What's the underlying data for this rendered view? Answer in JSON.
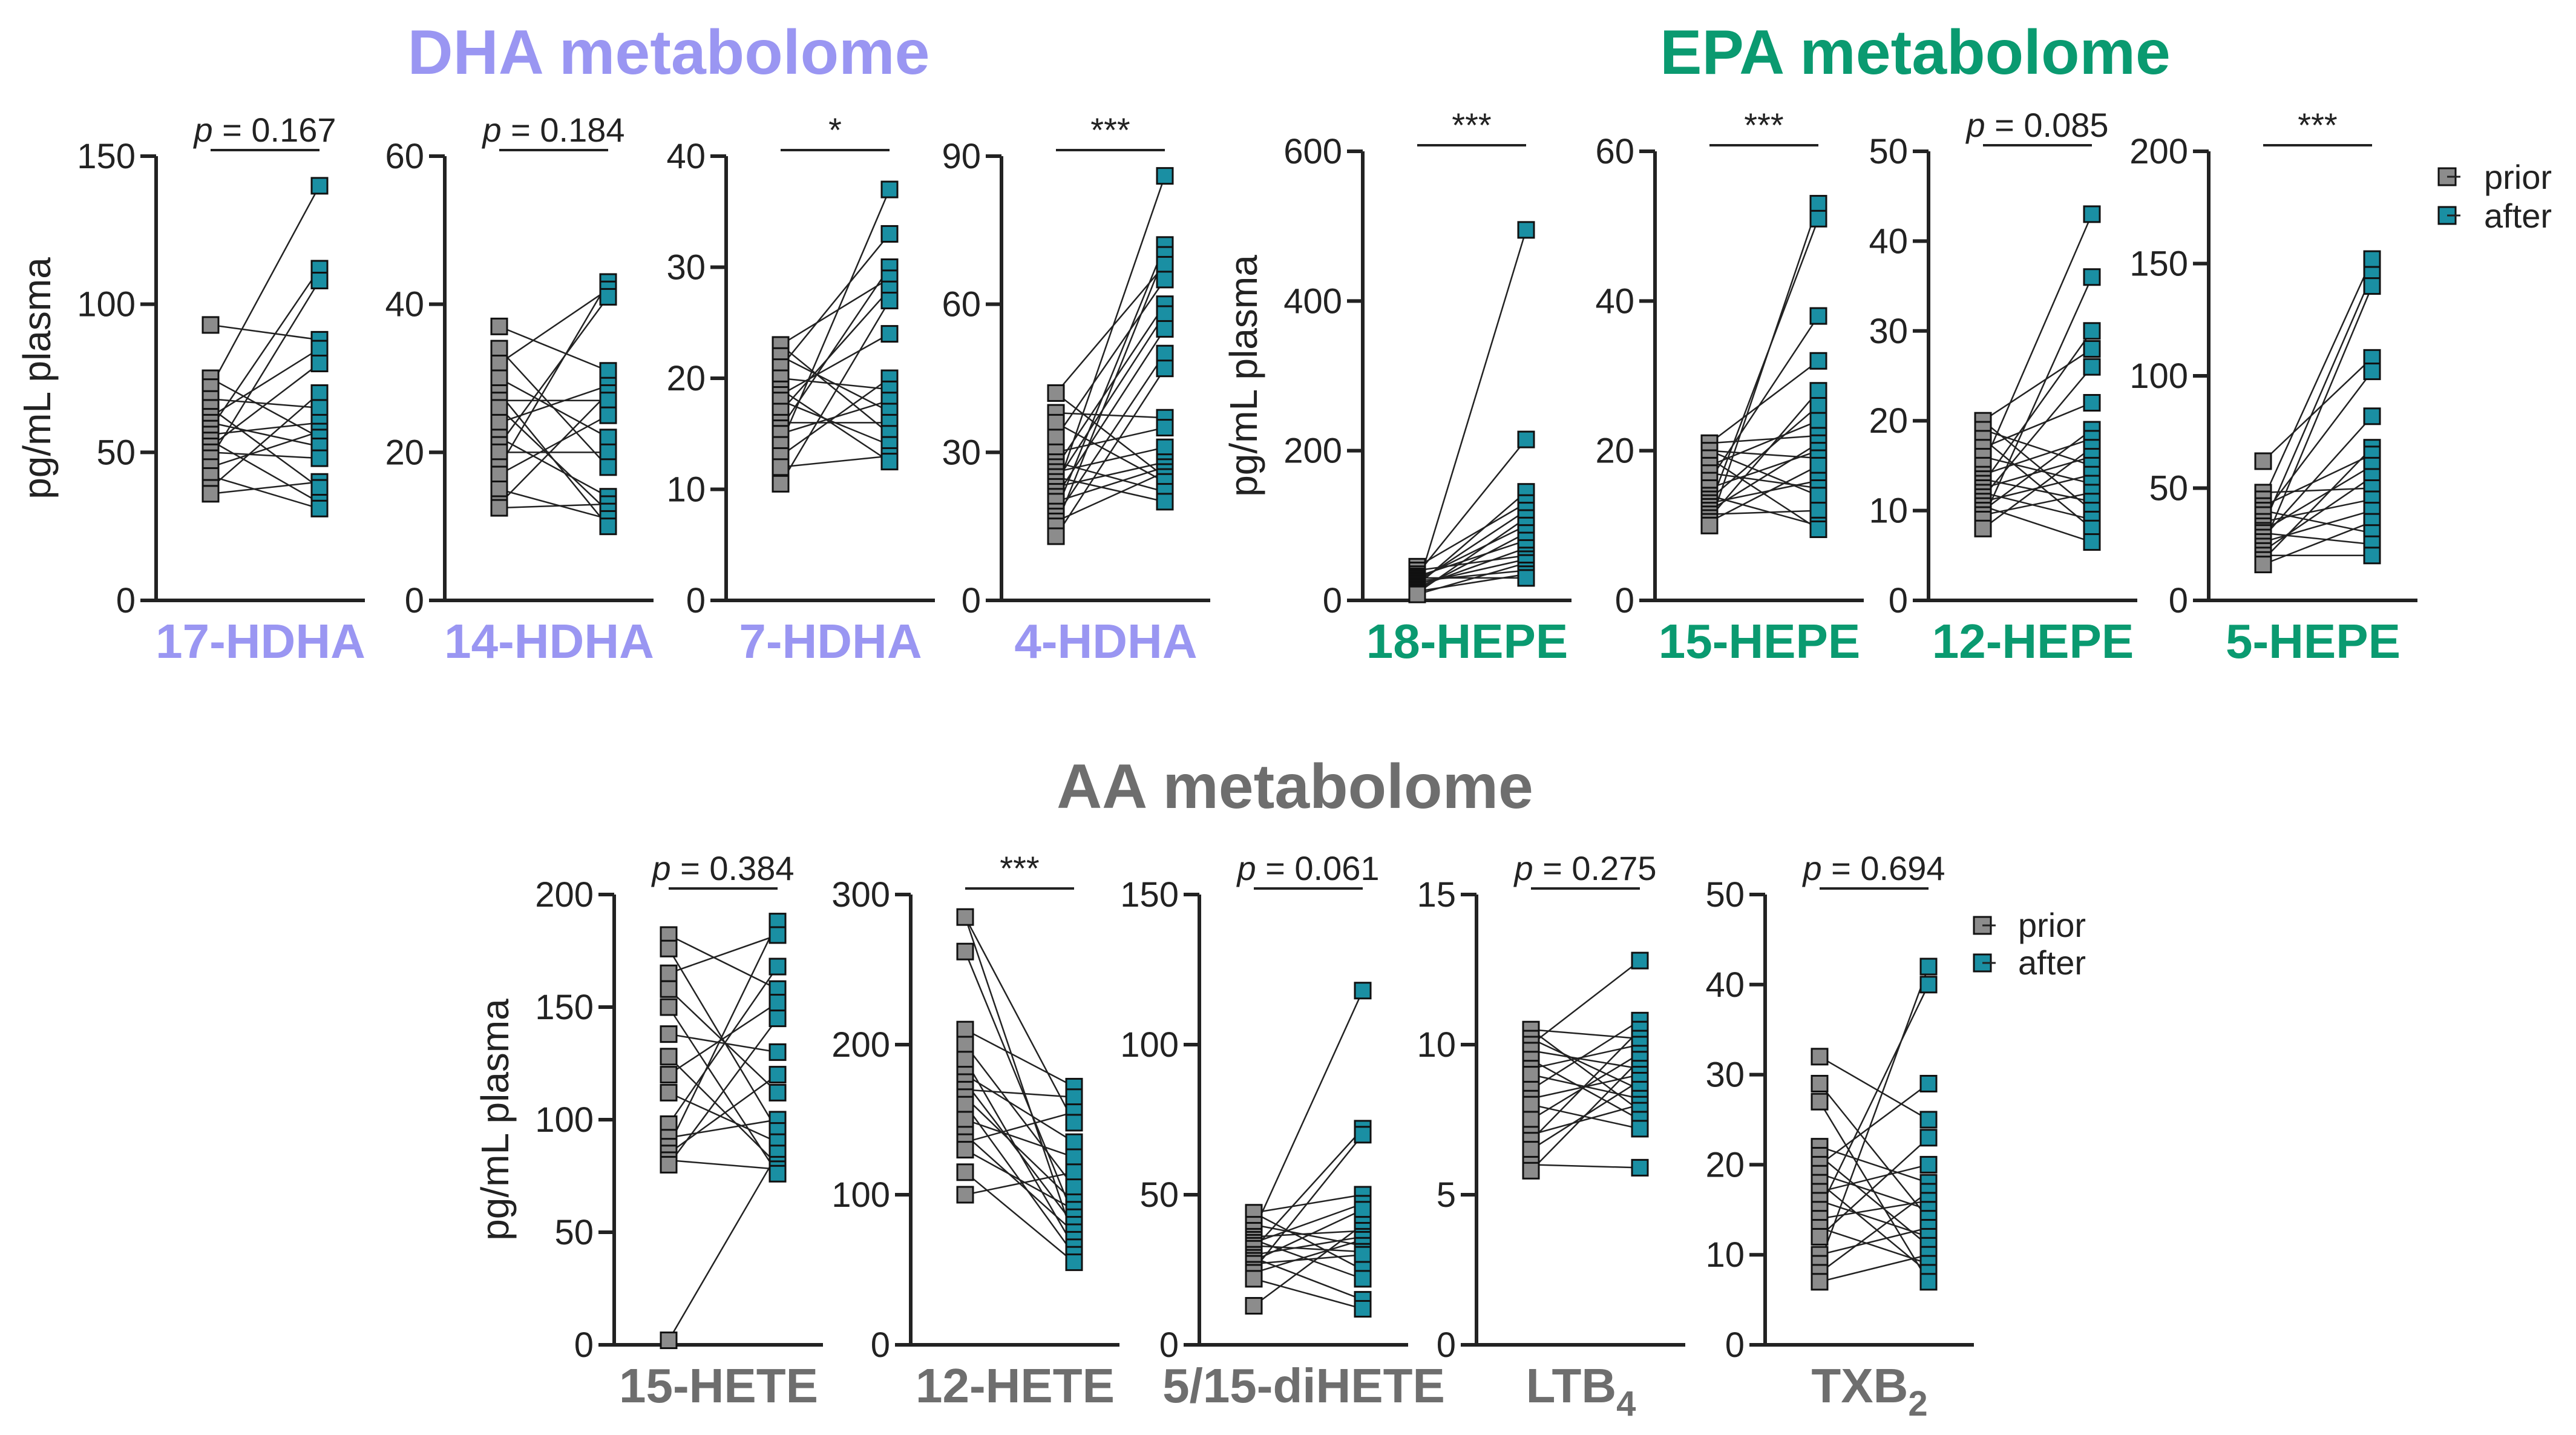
{
  "colors": {
    "dha": "#9a96f2",
    "epa": "#0a9a70",
    "aa": "#6e6e6e",
    "prior": "#8c8c8c",
    "after": "#1a8fa3",
    "axis": "#222222"
  },
  "sections": {
    "dha": "DHA metabolome",
    "epa": "EPA metabolome",
    "aa": "AA metabolome"
  },
  "ylabel": "pg/mL plasma",
  "legend": {
    "prior": "prior",
    "after": "after"
  },
  "chart_data": [
    {
      "type": "scatter",
      "group": "dha",
      "title": "17-HDHA",
      "ylabel": "pg/mL plasma",
      "ylim": [
        0,
        150
      ],
      "yticks": [
        "0",
        "50",
        "100",
        "150"
      ],
      "significance": {
        "pre": "p",
        "post": " = 0.167"
      },
      "series": [
        {
          "name": "prior",
          "values": [
            93,
            75,
            72,
            68,
            65,
            62,
            60,
            58,
            56,
            54,
            52,
            50,
            48,
            45,
            42,
            38,
            36
          ]
        },
        {
          "name": "after",
          "values": [
            140,
            112,
            108,
            88,
            85,
            80,
            70,
            65,
            60,
            57,
            55,
            52,
            48,
            40,
            38,
            33,
            31
          ]
        }
      ]
    },
    {
      "type": "scatter",
      "group": "dha",
      "title": "14-HDHA",
      "ylabel": "",
      "ylim": [
        0,
        60
      ],
      "yticks": [
        "0",
        "20",
        "40",
        "60"
      ],
      "significance": {
        "pre": "p",
        "post": " = 0.184"
      },
      "series": [
        {
          "name": "prior",
          "values": [
            37,
            34,
            32,
            30,
            28,
            27,
            26,
            24,
            22,
            21,
            20,
            18,
            17,
            15,
            13,
            12.5
          ]
        },
        {
          "name": "after",
          "values": [
            43,
            42,
            41,
            31,
            29,
            28,
            27,
            25,
            22,
            20,
            18,
            14,
            13,
            12,
            11,
            10
          ]
        }
      ]
    },
    {
      "type": "scatter",
      "group": "dha",
      "title": "7-HDHA",
      "ylabel": "",
      "ylim": [
        0,
        40
      ],
      "yticks": [
        "0",
        "10",
        "20",
        "30",
        "40"
      ],
      "significance": {
        "text": "*"
      },
      "series": [
        {
          "name": "prior",
          "values": [
            23,
            22,
            21,
            20,
            19,
            18.5,
            18,
            17,
            16,
            15.5,
            15,
            14,
            13,
            12,
            10.5
          ]
        },
        {
          "name": "after",
          "values": [
            37,
            33,
            30,
            29,
            28,
            27,
            24,
            20,
            19,
            18,
            17,
            16,
            15,
            14,
            13,
            12.5
          ]
        }
      ]
    },
    {
      "type": "scatter",
      "group": "dha",
      "title": "4-HDHA",
      "ylabel": "",
      "ylim": [
        0,
        90
      ],
      "yticks": [
        "0",
        "30",
        "60",
        "90"
      ],
      "significance": {
        "text": "***"
      },
      "series": [
        {
          "name": "prior",
          "values": [
            42,
            38,
            36,
            33,
            30,
            28,
            27,
            26,
            25,
            24,
            23,
            22,
            21,
            20,
            18,
            17,
            16,
            15,
            13
          ]
        },
        {
          "name": "after",
          "values": [
            86,
            72,
            70,
            68,
            65,
            60,
            58,
            55,
            50,
            47,
            37,
            35,
            31,
            28,
            27,
            26,
            25,
            24,
            22,
            20
          ]
        }
      ]
    },
    {
      "type": "scatter",
      "group": "epa",
      "title": "18-HEPE",
      "ylabel": "pg/mL plasma",
      "ylim": [
        0,
        600
      ],
      "yticks": [
        "0",
        "200",
        "400",
        "600"
      ],
      "significance": {
        "text": "***"
      },
      "series": [
        {
          "name": "prior",
          "values": [
            45,
            40,
            35,
            32,
            30,
            28,
            26,
            24,
            22,
            20,
            18,
            16,
            14,
            12,
            10,
            8
          ]
        },
        {
          "name": "after",
          "values": [
            495,
            215,
            145,
            130,
            120,
            110,
            100,
            90,
            80,
            70,
            60,
            55,
            50,
            40,
            35,
            30
          ]
        }
      ]
    },
    {
      "type": "scatter",
      "group": "epa",
      "title": "15-HEPE",
      "ylabel": "",
      "ylim": [
        0,
        60
      ],
      "yticks": [
        "0",
        "20",
        "40",
        "60"
      ],
      "significance": {
        "text": "***"
      },
      "series": [
        {
          "name": "prior",
          "values": [
            21,
            20,
            19,
            18,
            17,
            16,
            15,
            14,
            13.5,
            13,
            12.5,
            12,
            11.5,
            11,
            10.5,
            10
          ]
        },
        {
          "name": "after",
          "values": [
            53,
            51,
            38,
            32,
            28,
            26,
            24,
            22,
            21,
            20,
            19,
            18,
            16,
            15,
            14,
            12,
            10,
            9.5
          ]
        }
      ]
    },
    {
      "type": "scatter",
      "group": "epa",
      "title": "12-HEPE",
      "ylabel": "",
      "ylim": [
        0,
        50
      ],
      "yticks": [
        "0",
        "10",
        "20",
        "30",
        "40",
        "50"
      ],
      "significance": {
        "pre": "p",
        "post": " = 0.085"
      },
      "series": [
        {
          "name": "prior",
          "values": [
            20,
            19,
            18,
            17,
            16,
            15,
            14,
            13.5,
            13,
            12.5,
            12,
            11.5,
            11,
            10.5,
            10,
            9.5,
            9,
            8
          ]
        },
        {
          "name": "after",
          "values": [
            43,
            36,
            30,
            28,
            26,
            22,
            19,
            18,
            17,
            16,
            15,
            14,
            13,
            12,
            11,
            10,
            9,
            8,
            6.5
          ]
        }
      ]
    },
    {
      "type": "scatter",
      "group": "epa",
      "title": "5-HEPE",
      "ylabel": "",
      "ylim": [
        0,
        200
      ],
      "yticks": [
        "0",
        "50",
        "100",
        "150",
        "200"
      ],
      "significance": {
        "text": "***"
      },
      "series": [
        {
          "name": "prior",
          "values": [
            62,
            48,
            45,
            42,
            40,
            38,
            35,
            33,
            31,
            30,
            28,
            26,
            24,
            22,
            20,
            18,
            16
          ]
        },
        {
          "name": "after",
          "values": [
            152,
            145,
            140,
            108,
            102,
            82,
            68,
            65,
            60,
            55,
            50,
            45,
            40,
            35,
            30,
            25,
            20
          ]
        }
      ]
    },
    {
      "type": "scatter",
      "group": "aa",
      "title": "15-HETE",
      "ylabel": "pg/mL plasma",
      "ylim": [
        0,
        200
      ],
      "yticks": [
        "0",
        "50",
        "100",
        "150",
        "200"
      ],
      "significance": {
        "pre": "p",
        "post": " = 0.384"
      },
      "series": [
        {
          "name": "prior",
          "values": [
            182,
            176,
            165,
            158,
            150,
            138,
            128,
            120,
            112,
            98,
            92,
            88,
            85,
            82,
            80,
            2
          ]
        },
        {
          "name": "after",
          "values": [
            188,
            182,
            168,
            158,
            152,
            145,
            130,
            120,
            112,
            100,
            95,
            90,
            85,
            80,
            78,
            76
          ]
        }
      ]
    },
    {
      "type": "scatter",
      "group": "aa",
      "title": "12-HETE",
      "ylabel": "",
      "ylim": [
        0,
        300
      ],
      "yticks": [
        "0",
        "100",
        "200",
        "300"
      ],
      "significance": {
        "text": "***"
      },
      "series": [
        {
          "name": "prior",
          "values": [
            285,
            262,
            210,
            200,
            190,
            180,
            175,
            170,
            165,
            160,
            150,
            140,
            135,
            130,
            115,
            100
          ]
        },
        {
          "name": "after",
          "values": [
            172,
            165,
            155,
            148,
            135,
            125,
            115,
            105,
            95,
            90,
            85,
            80,
            75,
            70,
            65,
            60,
            55
          ]
        }
      ]
    },
    {
      "type": "scatter",
      "group": "aa",
      "title": "5/15-diHETE",
      "ylabel": "",
      "ylim": [
        0,
        150
      ],
      "yticks": [
        "0",
        "50",
        "100",
        "150"
      ],
      "significance": {
        "pre": "p",
        "post": " = 0.061"
      },
      "series": [
        {
          "name": "prior",
          "values": [
            44,
            40,
            38,
            36,
            35,
            34,
            33,
            32,
            30,
            29,
            28,
            27,
            25,
            24,
            22,
            13
          ]
        },
        {
          "name": "after",
          "values": [
            118,
            72,
            70,
            50,
            47,
            45,
            40,
            38,
            36,
            35,
            33,
            31,
            30,
            25,
            22,
            15,
            12
          ]
        }
      ]
    },
    {
      "type": "scatter",
      "group": "aa",
      "title": "LTB",
      "title_sub": "4",
      "ylabel": "",
      "ylim": [
        0,
        15
      ],
      "yticks": [
        "0",
        "5",
        "10",
        "15"
      ],
      "significance": {
        "pre": "p",
        "post": " = 0.275"
      },
      "series": [
        {
          "name": "prior",
          "values": [
            10.5,
            10.2,
            10,
            9.8,
            9.5,
            9.2,
            9,
            8.5,
            8.2,
            8,
            7.5,
            7,
            6.8,
            6.5,
            6,
            5.8
          ]
        },
        {
          "name": "after",
          "values": [
            12.8,
            10.8,
            10.5,
            10.2,
            10,
            9.7,
            9.5,
            9.2,
            9,
            8.8,
            8.5,
            8.2,
            8,
            7.8,
            7.5,
            7.2,
            5.9
          ]
        }
      ]
    },
    {
      "type": "scatter",
      "group": "aa",
      "title": "TXB",
      "title_sub": "2",
      "ylabel": "",
      "ylim": [
        0,
        50
      ],
      "yticks": [
        "0",
        "10",
        "20",
        "30",
        "40",
        "50"
      ],
      "significance": {
        "pre": "p",
        "post": " = 0.694"
      },
      "series": [
        {
          "name": "prior",
          "values": [
            32,
            29,
            27,
            22,
            21,
            20,
            19,
            18,
            17,
            16,
            15,
            14,
            13,
            12,
            10,
            9,
            8,
            7
          ]
        },
        {
          "name": "after",
          "values": [
            42,
            40,
            29,
            25,
            23,
            20,
            18,
            17,
            16,
            15,
            14,
            13,
            12,
            11,
            10,
            9,
            8,
            7
          ]
        }
      ]
    }
  ]
}
